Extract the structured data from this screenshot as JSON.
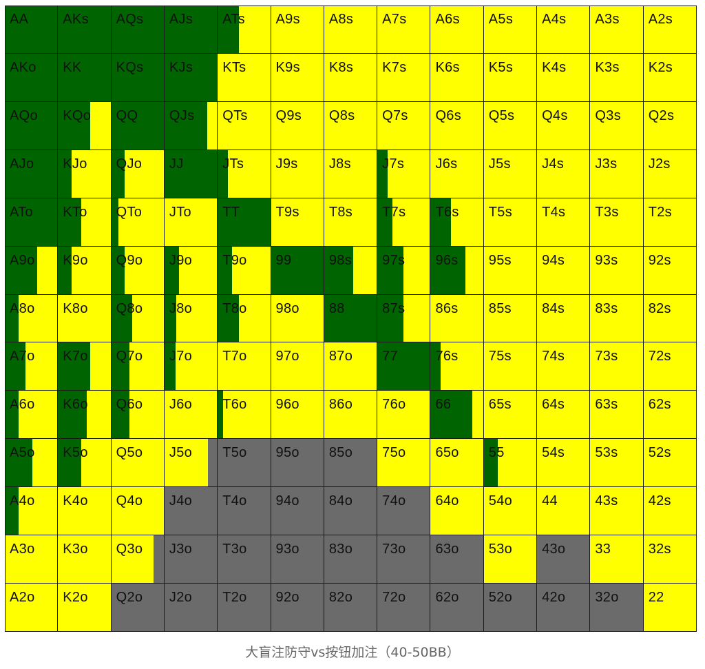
{
  "chart_data": {
    "type": "heatmap",
    "title": "大盲注防守vs按钮加注（40-50BB）",
    "colors": {
      "green": "#006400",
      "yellow": "#ffff00",
      "gray": "#6b6b6b"
    },
    "cell_format": [
      "label",
      "green_fraction",
      "gray_fraction"
    ],
    "rows": [
      [
        [
          "AA",
          1,
          0
        ],
        [
          "AKs",
          1,
          0
        ],
        [
          "AQs",
          1,
          0
        ],
        [
          "AJs",
          1,
          0
        ],
        [
          "ATs",
          0.4,
          0
        ],
        [
          "A9s",
          0,
          0
        ],
        [
          "A8s",
          0,
          0
        ],
        [
          "A7s",
          0,
          0
        ],
        [
          "A6s",
          0,
          0
        ],
        [
          "A5s",
          0,
          0
        ],
        [
          "A4s",
          0,
          0
        ],
        [
          "A3s",
          0,
          0
        ],
        [
          "A2s",
          0,
          0
        ]
      ],
      [
        [
          "AKo",
          1,
          0
        ],
        [
          "KK",
          1,
          0
        ],
        [
          "KQs",
          1,
          0
        ],
        [
          "KJs",
          1,
          0
        ],
        [
          "KTs",
          0,
          0
        ],
        [
          "K9s",
          0,
          0
        ],
        [
          "K8s",
          0,
          0
        ],
        [
          "K7s",
          0,
          0
        ],
        [
          "K6s",
          0,
          0
        ],
        [
          "K5s",
          0,
          0
        ],
        [
          "K4s",
          0,
          0
        ],
        [
          "K3s",
          0,
          0
        ],
        [
          "K2s",
          0,
          0
        ]
      ],
      [
        [
          "AQo",
          1,
          0
        ],
        [
          "KQo",
          0.61,
          0
        ],
        [
          "QQ",
          1,
          0
        ],
        [
          "QJs",
          0.82,
          0
        ],
        [
          "QTs",
          0,
          0
        ],
        [
          "Q9s",
          0,
          0
        ],
        [
          "Q8s",
          0,
          0
        ],
        [
          "Q7s",
          0,
          0
        ],
        [
          "Q6s",
          0,
          0
        ],
        [
          "Q5s",
          0,
          0
        ],
        [
          "Q4s",
          0,
          0
        ],
        [
          "Q3s",
          0,
          0
        ],
        [
          "Q2s",
          0,
          0
        ]
      ],
      [
        [
          "AJo",
          1,
          0
        ],
        [
          "KJo",
          0.26,
          0
        ],
        [
          "QJo",
          0.26,
          0
        ],
        [
          "JJ",
          1,
          0
        ],
        [
          "JTs",
          0.2,
          0
        ],
        [
          "J9s",
          0,
          0
        ],
        [
          "J8s",
          0,
          0
        ],
        [
          "J7s",
          0.19,
          0
        ],
        [
          "J6s",
          0,
          0
        ],
        [
          "J5s",
          0,
          0
        ],
        [
          "J4s",
          0,
          0
        ],
        [
          "J3s",
          0,
          0
        ],
        [
          "J2s",
          0,
          0
        ]
      ],
      [
        [
          "ATo",
          1,
          0
        ],
        [
          "KTo",
          0.44,
          0
        ],
        [
          "QTo",
          0.14,
          0
        ],
        [
          "JTo",
          0,
          0
        ],
        [
          "TT",
          1,
          0
        ],
        [
          "T9s",
          0,
          0
        ],
        [
          "T8s",
          0,
          0
        ],
        [
          "T7s",
          0.28,
          0
        ],
        [
          "T6s",
          0.39,
          0
        ],
        [
          "T5s",
          0,
          0
        ],
        [
          "T4s",
          0,
          0
        ],
        [
          "T3s",
          0,
          0
        ],
        [
          "T2s",
          0,
          0
        ]
      ],
      [
        [
          "A9o",
          0.61,
          0
        ],
        [
          "K9o",
          0.26,
          0
        ],
        [
          "Q9o",
          0.26,
          0
        ],
        [
          "J9o",
          0.27,
          0
        ],
        [
          "T9o",
          0.27,
          0
        ],
        [
          "99",
          1,
          0
        ],
        [
          "98s",
          0.55,
          0
        ],
        [
          "97s",
          0.5,
          0
        ],
        [
          "96s",
          0.66,
          0
        ],
        [
          "95s",
          0,
          0
        ],
        [
          "94s",
          0,
          0
        ],
        [
          "93s",
          0,
          0
        ],
        [
          "92s",
          0,
          0
        ]
      ],
      [
        [
          "A8o",
          0.26,
          0
        ],
        [
          "K8o",
          0,
          0
        ],
        [
          "Q8o",
          0.4,
          0
        ],
        [
          "J8o",
          0.23,
          0
        ],
        [
          "T8o",
          0.4,
          0
        ],
        [
          "98o",
          0,
          0
        ],
        [
          "88",
          1,
          0
        ],
        [
          "87s",
          0.5,
          0
        ],
        [
          "86s",
          0,
          0
        ],
        [
          "85s",
          0,
          0
        ],
        [
          "84s",
          0,
          0
        ],
        [
          "83s",
          0,
          0
        ],
        [
          "82s",
          0,
          0
        ]
      ],
      [
        [
          "A7o",
          0.39,
          0
        ],
        [
          "K7o",
          0.61,
          0
        ],
        [
          "Q7o",
          0.34,
          0
        ],
        [
          "J7o",
          0.21,
          0
        ],
        [
          "T7o",
          0,
          0
        ],
        [
          "97o",
          0,
          0
        ],
        [
          "87o",
          0,
          0
        ],
        [
          "77",
          1,
          0
        ],
        [
          "76s",
          0.19,
          0
        ],
        [
          "75s",
          0,
          0
        ],
        [
          "74s",
          0,
          0
        ],
        [
          "73s",
          0,
          0
        ],
        [
          "72s",
          0,
          0
        ]
      ],
      [
        [
          "A6o",
          0.26,
          0
        ],
        [
          "K6o",
          0.55,
          0
        ],
        [
          "Q6o",
          0.34,
          0
        ],
        [
          "J6o",
          0,
          0
        ],
        [
          "T6o",
          0.1,
          0
        ],
        [
          "96o",
          0,
          0
        ],
        [
          "86o",
          0,
          0
        ],
        [
          "76o",
          0,
          0
        ],
        [
          "66",
          0.79,
          0
        ],
        [
          "65s",
          0,
          0
        ],
        [
          "64s",
          0,
          0
        ],
        [
          "63s",
          0,
          0
        ],
        [
          "62s",
          0,
          0
        ]
      ],
      [
        [
          "A5o",
          0.52,
          0
        ],
        [
          "K5o",
          0.44,
          0
        ],
        [
          "Q5o",
          0,
          0
        ],
        [
          "J5o",
          0,
          0.18
        ],
        [
          "T5o",
          0,
          1
        ],
        [
          "95o",
          0,
          1
        ],
        [
          "85o",
          0,
          1
        ],
        [
          "75o",
          0,
          0
        ],
        [
          "65o",
          0,
          0
        ],
        [
          "55",
          0.26,
          0
        ],
        [
          "54s",
          0,
          0
        ],
        [
          "53s",
          0,
          0
        ],
        [
          "52s",
          0,
          0
        ]
      ],
      [
        [
          "A4o",
          0.26,
          0
        ],
        [
          "K4o",
          0,
          0
        ],
        [
          "Q4o",
          0,
          0
        ],
        [
          "J4o",
          0,
          1
        ],
        [
          "T4o",
          0,
          1
        ],
        [
          "94o",
          0,
          1
        ],
        [
          "84o",
          0,
          1
        ],
        [
          "74o",
          0,
          1
        ],
        [
          "64o",
          0,
          0
        ],
        [
          "54o",
          0,
          0
        ],
        [
          "44",
          0,
          0
        ],
        [
          "43s",
          0,
          0
        ],
        [
          "42s",
          0,
          0
        ]
      ],
      [
        [
          "A3o",
          0,
          0
        ],
        [
          "K3o",
          0,
          0
        ],
        [
          "Q3o",
          0,
          0.19
        ],
        [
          "J3o",
          0,
          1
        ],
        [
          "T3o",
          0,
          1
        ],
        [
          "93o",
          0,
          1
        ],
        [
          "83o",
          0,
          1
        ],
        [
          "73o",
          0,
          1
        ],
        [
          "63o",
          0,
          1
        ],
        [
          "53o",
          0,
          0
        ],
        [
          "43o",
          0,
          1
        ],
        [
          "33",
          0,
          0
        ],
        [
          "32s",
          0,
          0
        ]
      ],
      [
        [
          "A2o",
          0,
          0
        ],
        [
          "K2o",
          0,
          0
        ],
        [
          "Q2o",
          0,
          1
        ],
        [
          "J2o",
          0,
          1
        ],
        [
          "T2o",
          0,
          1
        ],
        [
          "92o",
          0,
          1
        ],
        [
          "82o",
          0,
          1
        ],
        [
          "72o",
          0,
          1
        ],
        [
          "62o",
          0,
          1
        ],
        [
          "52o",
          0,
          1
        ],
        [
          "42o",
          0,
          1
        ],
        [
          "32o",
          0,
          1
        ],
        [
          "22",
          0,
          0
        ]
      ]
    ]
  }
}
